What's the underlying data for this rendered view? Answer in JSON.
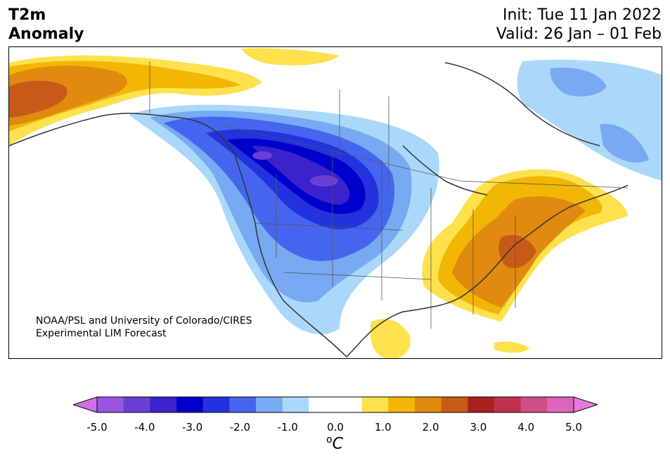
{
  "header": {
    "title_line1": "T2m",
    "title_line2": "Anomaly",
    "init_label": "Init: Tue 11 Jan 2022",
    "valid_label": "Valid: 26 Jan – 01 Feb"
  },
  "credit": {
    "line1": "NOAA/PSL and University of Colorado/CIRES",
    "line2": "Experimental LIM Forecast"
  },
  "colorbar": {
    "ticks": [
      "-5.0",
      "-4.0",
      "-3.0",
      "-2.0",
      "-1.0",
      "0.0",
      "1.0",
      "2.0",
      "3.0",
      "4.0",
      "5.0"
    ],
    "unit_super": "o",
    "unit": "C",
    "colors": [
      "#9a55e0",
      "#6a3fd8",
      "#3a22cc",
      "#0000cc",
      "#2233dd",
      "#4466ee",
      "#77aaf2",
      "#aad8fb",
      "#ffffff",
      "#ffffff",
      "#ffe14d",
      "#f2b705",
      "#e08a10",
      "#c85a18",
      "#a82020",
      "#c0304c",
      "#cc4f88",
      "#dd66bb"
    ],
    "extend_low_color": "#d070e8",
    "extend_high_color": "#e878dd"
  },
  "map": {
    "region": "North America",
    "variable": "2-m temperature anomaly"
  }
}
